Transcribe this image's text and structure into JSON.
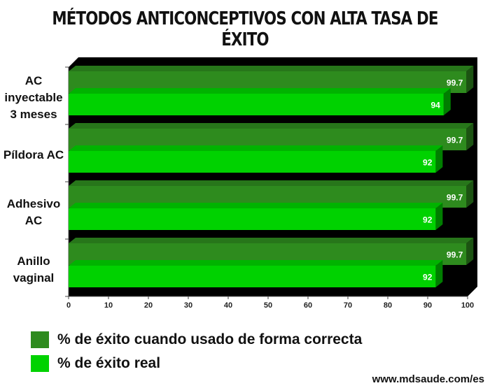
{
  "chart_data": {
    "type": "bar",
    "orientation": "horizontal",
    "title": "MÉTODOS ANTICONCEPTIVOS CON ALTA TASA DE ÉXITO",
    "categories": [
      [
        "AC",
        "inyectable",
        "3 meses"
      ],
      [
        "Píldora AC"
      ],
      [
        "Adhesivo",
        "AC"
      ],
      [
        "Anillo",
        "vaginal"
      ]
    ],
    "series": [
      {
        "name": "% de éxito cuando usado de forma correcta",
        "values": [
          99.7,
          99.7,
          99.7,
          99.7
        ],
        "color": "#2e8b1e"
      },
      {
        "name": "% de éxito real",
        "values": [
          94,
          92,
          92,
          92
        ],
        "color": "#00d200"
      }
    ],
    "xlim": [
      0,
      100
    ],
    "xticks": [
      "0",
      "10",
      "20",
      "30",
      "40",
      "50",
      "60",
      "70",
      "80",
      "90",
      "100"
    ],
    "legend_position": "bottom",
    "grid": false,
    "three_d": true,
    "background": "#000000"
  },
  "source": "www.mdsaude.com/es"
}
